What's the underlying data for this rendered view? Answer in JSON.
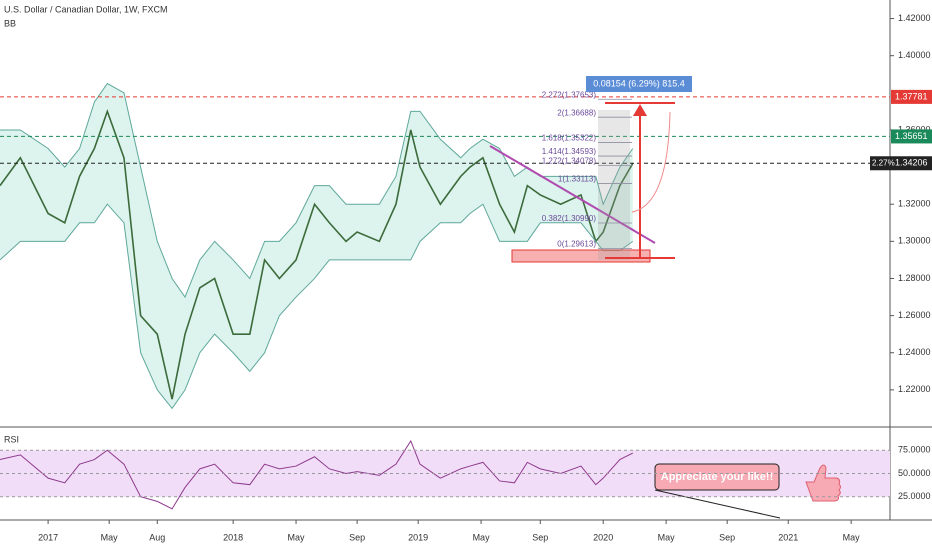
{
  "chart_data": {
    "type": "line",
    "title": "U.S. Dollar / Canadian Dollar, 1W, FXCM",
    "indicator": "BB",
    "x": [
      2016.74,
      2016.85,
      2017.0,
      2017.09,
      2017.17,
      2017.25,
      2017.32,
      2017.41,
      2017.5,
      2017.59,
      2017.67,
      2017.74,
      2017.82,
      2017.9,
      2018.0,
      2018.09,
      2018.17,
      2018.25,
      2018.34,
      2018.44,
      2018.52,
      2018.61,
      2018.67,
      2018.79,
      2018.88,
      2018.96,
      2019.01,
      2019.12,
      2019.23,
      2019.28,
      2019.35,
      2019.44,
      2019.52,
      2019.59,
      2019.66,
      2019.77,
      2019.88,
      2019.96,
      2020.0,
      2020.09,
      2020.16
    ],
    "series": [
      {
        "name": "Close",
        "color": "#3b6b3b",
        "values": [
          1.33,
          1.345,
          1.315,
          1.31,
          1.335,
          1.35,
          1.37,
          1.345,
          1.26,
          1.25,
          1.215,
          1.25,
          1.275,
          1.28,
          1.25,
          1.25,
          1.29,
          1.28,
          1.29,
          1.32,
          1.31,
          1.3,
          1.305,
          1.3,
          1.32,
          1.36,
          1.34,
          1.32,
          1.335,
          1.34,
          1.345,
          1.32,
          1.305,
          1.33,
          1.325,
          1.32,
          1.325,
          1.3,
          1.305,
          1.33,
          1.342
        ]
      },
      {
        "name": "Upper",
        "color": "#5fa89b",
        "values": [
          1.36,
          1.36,
          1.35,
          1.34,
          1.35,
          1.375,
          1.385,
          1.38,
          1.34,
          1.3,
          1.28,
          1.27,
          1.29,
          1.3,
          1.29,
          1.28,
          1.3,
          1.3,
          1.31,
          1.33,
          1.33,
          1.32,
          1.32,
          1.32,
          1.335,
          1.37,
          1.37,
          1.355,
          1.345,
          1.35,
          1.355,
          1.35,
          1.335,
          1.34,
          1.335,
          1.335,
          1.335,
          1.335,
          1.32,
          1.34,
          1.35
        ]
      },
      {
        "name": "Lower",
        "color": "#5fa89b",
        "values": [
          1.29,
          1.3,
          1.3,
          1.3,
          1.31,
          1.31,
          1.32,
          1.31,
          1.24,
          1.22,
          1.21,
          1.22,
          1.24,
          1.25,
          1.24,
          1.23,
          1.24,
          1.26,
          1.27,
          1.28,
          1.29,
          1.29,
          1.29,
          1.29,
          1.29,
          1.29,
          1.3,
          1.31,
          1.31,
          1.315,
          1.32,
          1.3,
          1.3,
          1.3,
          1.31,
          1.31,
          1.31,
          1.3,
          1.295,
          1.295,
          1.3
        ]
      }
    ],
    "xlim": [
      2016.74,
      2021.55
    ],
    "xticks": [
      {
        "value": 2017,
        "label": "2017"
      },
      {
        "value": 2017.33,
        "label": "May"
      },
      {
        "value": 2017.59,
        "label": "Aug"
      },
      {
        "value": 2018,
        "label": "2018"
      },
      {
        "value": 2018.34,
        "label": "May"
      },
      {
        "value": 2018.67,
        "label": "Sep"
      },
      {
        "value": 2019,
        "label": "2019"
      },
      {
        "value": 2019.34,
        "label": "May"
      },
      {
        "value": 2019.66,
        "label": "Sep"
      },
      {
        "value": 2020,
        "label": "2020"
      },
      {
        "value": 2020.34,
        "label": "May"
      },
      {
        "value": 2020.67,
        "label": "Sep"
      },
      {
        "value": 2021,
        "label": "2021"
      },
      {
        "value": 2021.34,
        "label": "May"
      }
    ],
    "ylim": [
      1.2,
      1.43
    ],
    "yticks": [
      {
        "value": 1.42,
        "label": "1.42000"
      },
      {
        "value": 1.4,
        "label": "1.40000"
      },
      {
        "value": 1.36,
        "label": "1.36000"
      },
      {
        "value": 1.32,
        "label": "1.32000"
      },
      {
        "value": 1.3,
        "label": "1.30000"
      },
      {
        "value": 1.28,
        "label": "1.28000"
      },
      {
        "value": 1.26,
        "label": "1.26000"
      },
      {
        "value": 1.24,
        "label": "1.24000"
      },
      {
        "value": 1.22,
        "label": "1.22000"
      }
    ],
    "price_lines": [
      {
        "value": 1.37781,
        "label": "1.37781",
        "color": "#e53935"
      },
      {
        "value": 1.35651,
        "label": "1.35651",
        "color": "#1b8a5a"
      },
      {
        "value": 1.34206,
        "label": "1.34206",
        "color": "#222222",
        "tag": "2.27%"
      }
    ],
    "measure_label": "0.08154 (6.29%) 815.4",
    "fib_levels": [
      {
        "value": 1.37653,
        "label": "2.272(1.37653)"
      },
      {
        "value": 1.36688,
        "label": "2(1.36688)"
      },
      {
        "value": 1.35322,
        "label": "1.618(1.35322)"
      },
      {
        "value": 1.34593,
        "label": "1.414(1.34593)"
      },
      {
        "value": 1.34078,
        "label": "1.272(1.34078)"
      },
      {
        "value": 1.33113,
        "label": "1(1.33113)"
      },
      {
        "value": 1.3099,
        "label": "0.382(1.30990)"
      },
      {
        "value": 1.29613,
        "label": "0(1.29613)"
      }
    ],
    "rsi": {
      "name": "RSI",
      "color": "#8e3a8e",
      "values": [
        65,
        70,
        45,
        40,
        60,
        65,
        75,
        60,
        25,
        20,
        12,
        35,
        55,
        60,
        40,
        38,
        60,
        55,
        58,
        68,
        55,
        50,
        52,
        48,
        60,
        85,
        60,
        45,
        55,
        58,
        62,
        42,
        40,
        62,
        55,
        50,
        58,
        38,
        45,
        65,
        72
      ],
      "ylim": [
        0,
        100
      ],
      "yticks": [
        {
          "value": 75,
          "label": "75.0000"
        },
        {
          "value": 50,
          "label": "50.0000"
        },
        {
          "value": 25,
          "label": "25.0000"
        }
      ]
    },
    "note": "Appreciate your like!!"
  }
}
